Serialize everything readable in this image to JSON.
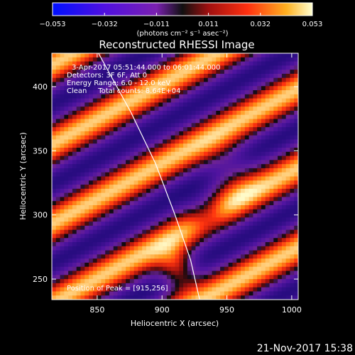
{
  "chart_data": {
    "type": "heatmap",
    "title": "Reconstructed RHESSI Image",
    "xlabel": "Heliocentric X (arcsec)",
    "ylabel": "Heliocentric Y (arcsec)",
    "xlim": [
      815,
      1005
    ],
    "ylim": [
      234,
      426
    ],
    "x_ticks": [
      850,
      900,
      950,
      1000
    ],
    "y_ticks": [
      250,
      300,
      350,
      400
    ],
    "colorbar": {
      "label": "(photons cm⁻² s⁻¹ asec⁻²)",
      "range": [
        -0.053,
        0.053
      ],
      "tick_labels": [
        "−0.053",
        "−0.032",
        "−0.011",
        "0.011",
        "0.032",
        "0.053"
      ]
    },
    "annotations": [
      "3-Apr-2017 05:51:44.000 to 06:01:44.000",
      "Detectors: 3F 6F, Att 0",
      "Energy Range: 6.0 - 12.0 keV",
      "Clean     Total counts: 8.64E+04",
      "Position of Peak = [915,256]"
    ],
    "peak": {
      "x": 915,
      "y": 256
    },
    "limb_curve_x_at_y": [
      [
        851,
        426
      ],
      [
        876,
        380
      ],
      [
        895,
        340
      ],
      [
        910,
        300
      ],
      [
        922,
        265
      ],
      [
        929,
        234
      ]
    ]
  },
  "footer": {
    "timestamp": "21-Nov-2017 15:38"
  },
  "colors": {
    "background": "#000000",
    "text": "#ffffff"
  }
}
